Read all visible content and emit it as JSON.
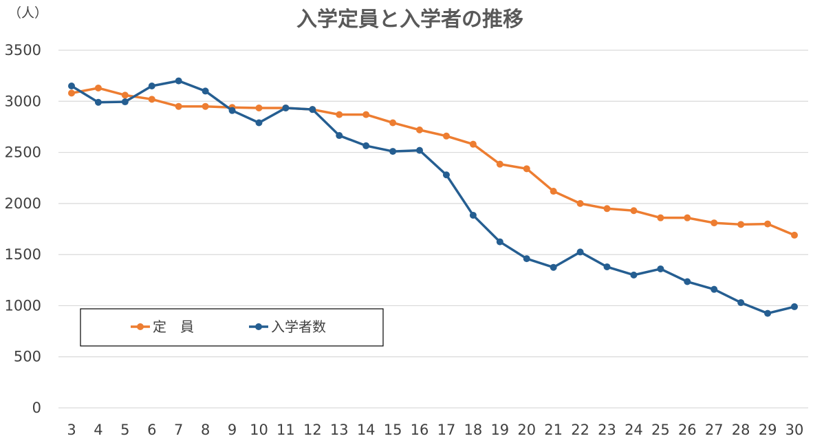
{
  "chart_data": {
    "type": "line",
    "title": "入学定員と入学者の推移",
    "unit_label": "（人）",
    "xlabel": "",
    "ylabel": "",
    "ylim": [
      0,
      3500
    ],
    "yticks": [
      "0",
      "500",
      "1000",
      "1500",
      "2000",
      "2500",
      "3000",
      "3500"
    ],
    "categories": [
      "3",
      "4",
      "5",
      "6",
      "7",
      "8",
      "9",
      "10",
      "11",
      "12",
      "13",
      "14",
      "15",
      "16",
      "17",
      "18",
      "19",
      "20",
      "21",
      "22",
      "23",
      "24",
      "25",
      "26",
      "27",
      "28",
      "29",
      "30"
    ],
    "grid": true,
    "legend_position": "bottom-left",
    "series": [
      {
        "name": "定　員",
        "color": "#ED7D31",
        "values": [
          3080,
          3130,
          3060,
          3020,
          2950,
          2950,
          2940,
          2935,
          2935,
          2920,
          2870,
          2870,
          2790,
          2720,
          2660,
          2580,
          2385,
          2340,
          2120,
          2000,
          1950,
          1930,
          1860,
          1860,
          1810,
          1795,
          1800,
          1690
        ]
      },
      {
        "name": "入学者数",
        "color": "#255E91",
        "values": [
          3150,
          2990,
          2995,
          3150,
          3200,
          3100,
          2910,
          2790,
          2935,
          2920,
          2665,
          2565,
          2510,
          2520,
          2280,
          1885,
          1625,
          1460,
          1375,
          1525,
          1380,
          1300,
          1360,
          1235,
          1160,
          1030,
          925,
          990
        ]
      }
    ]
  }
}
